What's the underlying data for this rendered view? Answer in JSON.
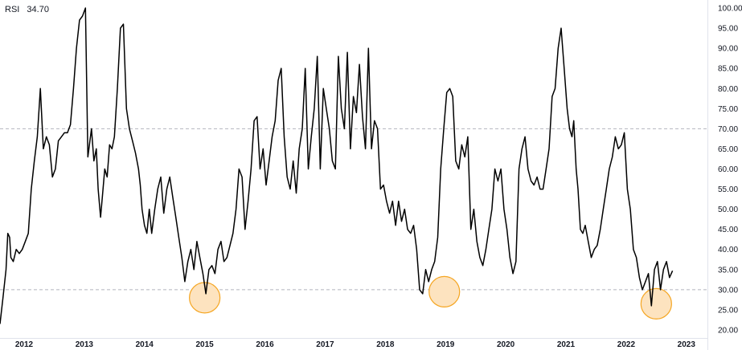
{
  "legend": {
    "indicator": "RSI",
    "value": "34.70"
  },
  "chart_data": {
    "type": "line",
    "ylim": [
      18,
      102
    ],
    "xlim": [
      2011.6,
      2023.35
    ],
    "y_ticks": [
      "100.00",
      "95.00",
      "90.00",
      "85.00",
      "80.00",
      "75.00",
      "70.00",
      "65.00",
      "60.00",
      "55.00",
      "50.00",
      "45.00",
      "40.00",
      "35.00",
      "30.00",
      "25.00",
      "20.00"
    ],
    "x_ticks": [
      "2012",
      "2013",
      "2014",
      "2015",
      "2016",
      "2017",
      "2018",
      "2019",
      "2020",
      "2021",
      "2022",
      "2023"
    ],
    "reference_lines": [
      70,
      30
    ],
    "highlight_circles": [
      {
        "x": 2015.0,
        "y": 28.0
      },
      {
        "x": 2018.98,
        "y": 29.5
      },
      {
        "x": 2022.5,
        "y": 26.5
      }
    ],
    "colors": {
      "line": "#000000",
      "circle_fill": "#fde3bf",
      "circle_stroke": "#f5a623",
      "ref_line": "#b2b5be"
    },
    "series": [
      {
        "x": [
          2011.6,
          2011.65,
          2011.7,
          2011.73,
          2011.76,
          2011.78,
          2011.82,
          2011.87,
          2011.92,
          2011.97,
          2012.02,
          2012.07,
          2012.12,
          2012.17,
          2012.22,
          2012.27,
          2012.32,
          2012.37,
          2012.42,
          2012.47,
          2012.52,
          2012.57,
          2012.62,
          2012.67,
          2012.72,
          2012.77,
          2012.82,
          2012.87,
          2012.92,
          2012.97,
          2013.02,
          2013.06,
          2013.12,
          2013.16,
          2013.2,
          2013.23,
          2013.27,
          2013.3,
          2013.34,
          2013.38,
          2013.42,
          2013.46,
          2013.5,
          2013.55,
          2013.6,
          2013.65,
          2013.7,
          2013.75,
          2013.8,
          2013.85,
          2013.9,
          2013.93,
          2013.96,
          2014.0,
          2014.04,
          2014.08,
          2014.12,
          2014.17,
          2014.22,
          2014.27,
          2014.32,
          2014.37,
          2014.42,
          2014.47,
          2014.52,
          2014.57,
          2014.62,
          2014.67,
          2014.72,
          2014.77,
          2014.82,
          2014.87,
          2014.92,
          2014.97,
          2015.02,
          2015.07,
          2015.12,
          2015.17,
          2015.22,
          2015.27,
          2015.32,
          2015.37,
          2015.42,
          2015.47,
          2015.52,
          2015.57,
          2015.62,
          2015.67,
          2015.72,
          2015.77,
          2015.82,
          2015.87,
          2015.92,
          2015.97,
          2016.02,
          2016.07,
          2016.12,
          2016.17,
          2016.22,
          2016.27,
          2016.32,
          2016.37,
          2016.42,
          2016.47,
          2016.52,
          2016.57,
          2016.62,
          2016.67,
          2016.72,
          2016.77,
          2016.82,
          2016.87,
          2016.92,
          2016.97,
          2017.02,
          2017.07,
          2017.12,
          2017.17,
          2017.22,
          2017.27,
          2017.32,
          2017.37,
          2017.42,
          2017.47,
          2017.52,
          2017.57,
          2017.62,
          2017.67,
          2017.72,
          2017.77,
          2017.82,
          2017.87,
          2017.92,
          2017.97,
          2018.02,
          2018.07,
          2018.12,
          2018.17,
          2018.22,
          2018.27,
          2018.32,
          2018.37,
          2018.42,
          2018.47,
          2018.52,
          2018.57,
          2018.62,
          2018.67,
          2018.72,
          2018.77,
          2018.82,
          2018.87,
          2018.92,
          2018.97,
          2019.02,
          2019.07,
          2019.12,
          2019.17,
          2019.22,
          2019.27,
          2019.32,
          2019.37,
          2019.42,
          2019.47,
          2019.52,
          2019.57,
          2019.62,
          2019.67,
          2019.72,
          2019.77,
          2019.82,
          2019.87,
          2019.92,
          2019.97,
          2020.02,
          2020.07,
          2020.12,
          2020.17,
          2020.22,
          2020.27,
          2020.32,
          2020.37,
          2020.42,
          2020.47,
          2020.52,
          2020.57,
          2020.62,
          2020.67,
          2020.72,
          2020.77,
          2020.82,
          2020.87,
          2020.92,
          2020.97,
          2021.02,
          2021.06,
          2021.1,
          2021.13,
          2021.17,
          2021.2,
          2021.24,
          2021.28,
          2021.32,
          2021.37,
          2021.42,
          2021.47,
          2021.52,
          2021.57,
          2021.62,
          2021.67,
          2021.72,
          2021.77,
          2021.82,
          2021.87,
          2021.92,
          2021.97,
          2022.02,
          2022.07,
          2022.12,
          2022.17,
          2022.22,
          2022.27,
          2022.32,
          2022.37,
          2022.42,
          2022.47,
          2022.52,
          2022.57,
          2022.62,
          2022.67,
          2022.72,
          2022.77
        ],
        "y": [
          21.5,
          28,
          35,
          44,
          43,
          38,
          37,
          40,
          39,
          40,
          42,
          44,
          55,
          62,
          68,
          80,
          65,
          68,
          66,
          58,
          60,
          67,
          68,
          69,
          69,
          71,
          80,
          90,
          97,
          98,
          100,
          63,
          70,
          62,
          65,
          55,
          48,
          53,
          60,
          58,
          66,
          65,
          68,
          80,
          95,
          96,
          75,
          70,
          67,
          64,
          60,
          56,
          50,
          46,
          44,
          50,
          44,
          50,
          55,
          58,
          49,
          55,
          58,
          53,
          48,
          43,
          38,
          32,
          37,
          40,
          35,
          42,
          38,
          34,
          29,
          35,
          36,
          34,
          40,
          42,
          37,
          38,
          41,
          44,
          50,
          60,
          58,
          45,
          52,
          60,
          72,
          73,
          60,
          65,
          56,
          62,
          68,
          72,
          82,
          85,
          68,
          58,
          55,
          62,
          54,
          65,
          70,
          85,
          60,
          68,
          75,
          88,
          60,
          80,
          75,
          70,
          62,
          60,
          88,
          75,
          70,
          89,
          65,
          78,
          74,
          86,
          73,
          65,
          90,
          65,
          72,
          70,
          55,
          56,
          52,
          49,
          52,
          46,
          52,
          47,
          50,
          45,
          44,
          46,
          40,
          30,
          29,
          35,
          32,
          35,
          37,
          43,
          60,
          70,
          79,
          80,
          78,
          62,
          60,
          66,
          63,
          68,
          45,
          50,
          42,
          38,
          36,
          40,
          45,
          50,
          60,
          57,
          60,
          50,
          45,
          38,
          34,
          37,
          60,
          65,
          68,
          60,
          57,
          56,
          58,
          55,
          55,
          60,
          65,
          78,
          80,
          90,
          95,
          85,
          75,
          70,
          68,
          72,
          60,
          55,
          45,
          44,
          46,
          42,
          38,
          40,
          41,
          45,
          50,
          55,
          60,
          63,
          68,
          65,
          66,
          69,
          55,
          50,
          40,
          38,
          33,
          30,
          32,
          34,
          26,
          35,
          37,
          30,
          35,
          37,
          33,
          34.7
        ]
      }
    ]
  }
}
